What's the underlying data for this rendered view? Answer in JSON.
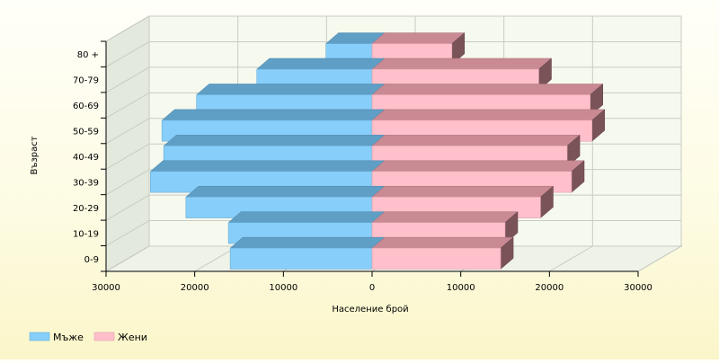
{
  "chart_data": {
    "type": "bar",
    "orientation": "horizontal",
    "style": "3d-population-pyramid",
    "categories": [
      "0-9",
      "10-19",
      "20-29",
      "30-39",
      "40-49",
      "50-59",
      "60-69",
      "70-79",
      "80 +"
    ],
    "series": [
      {
        "name": "Мъже",
        "side": "left",
        "color": "#87CEFA",
        "values": [
          16000,
          16200,
          21000,
          25000,
          23500,
          23700,
          19800,
          13000,
          5200
        ]
      },
      {
        "name": "Жени",
        "side": "right",
        "color": "#FFC0CB",
        "values": [
          14500,
          15000,
          19000,
          22500,
          22000,
          24800,
          24600,
          18800,
          9000
        ]
      }
    ],
    "xlabel": "Население брой",
    "ylabel": "Възраст",
    "xticks": [
      "30000",
      "20000",
      "10000",
      "0",
      "10000",
      "20000",
      "30000"
    ],
    "xlim": [
      -30000,
      30000
    ],
    "grid": true,
    "legend_position": "bottom-left"
  }
}
